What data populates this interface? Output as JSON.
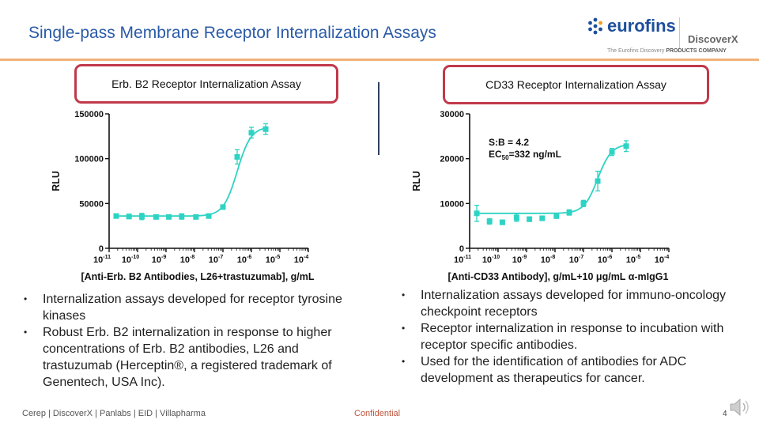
{
  "slide": {
    "title": "Single-pass Membrane Receptor Internalization Assays",
    "page_number": "4"
  },
  "logo": {
    "brand": "eurofins",
    "division": "DiscoverX",
    "tagline_prefix": "The Eurofins Discovery",
    "tagline_bold": "PRODUCTS COMPANY"
  },
  "colors": {
    "title": "#2a5aa8",
    "data_teal": "#2ed3c4",
    "box_border": "#c0394a",
    "rule_orange": "#f0b37a",
    "footer_confidential": "#c0543c"
  },
  "left": {
    "box_label": "Erb. B2 Receptor Internalization Assay",
    "bullets": [
      "Internalization assays developed for receptor tyrosine kinases",
      "Robust Erb. B2 internalization in response to higher concentrations of Erb. B2 antibodies, L26 and trastuzumab (Herceptin®, a registered trademark of Genentech, USA Inc)."
    ]
  },
  "right": {
    "box_label": "CD33 Receptor Internalization Assay",
    "bullets": [
      "Internalization assays developed for immuno-oncology checkpoint receptors",
      "Receptor internalization in response to incubation with receptor specific antibodies.",
      "Used for the identification of antibodies for ADC development as therapeutics for cancer."
    ]
  },
  "footer": {
    "left": "Cerep | DiscoverX | Panlabs | EID | Villapharma",
    "center": "Confidential"
  },
  "chart_data": [
    {
      "type": "scatter",
      "title": "Erb. B2 Receptor Internalization Assay",
      "xlabel": "[Anti-Erb. B2 Antibodies, L26+trastuzumab], g/mL",
      "ylabel": "RLU",
      "xscale": "log",
      "xlim": [
        -11,
        -4
      ],
      "ylim": [
        0,
        150000
      ],
      "x_ticks": [
        -11,
        -10,
        -9,
        -8,
        -7,
        -6,
        -5,
        -4
      ],
      "x_tick_labels": [
        "10",
        "10",
        "10",
        "10",
        "10",
        "10",
        "10",
        "10"
      ],
      "x_tick_exponents": [
        "-11",
        "-10",
        "-9",
        "-8",
        "-7",
        "-6",
        "-5",
        "-4"
      ],
      "y_ticks": [
        0,
        50000,
        100000,
        150000
      ],
      "y_tick_labels": [
        "0",
        "50000",
        "100000",
        "150000"
      ],
      "fit_curve": true,
      "series": [
        {
          "points": [
            {
              "x": -10.75,
              "y": 36000,
              "err": 2000
            },
            {
              "x": -10.3,
              "y": 35500,
              "err": 2500
            },
            {
              "x": -9.85,
              "y": 35500,
              "err": 3500
            },
            {
              "x": -9.35,
              "y": 35000,
              "err": 2000
            },
            {
              "x": -8.9,
              "y": 35000,
              "err": 1500
            },
            {
              "x": -8.45,
              "y": 35500,
              "err": 3000
            },
            {
              "x": -7.95,
              "y": 35000,
              "err": 2000
            },
            {
              "x": -7.5,
              "y": 36000,
              "err": 2000
            },
            {
              "x": -7.0,
              "y": 46000,
              "err": 2000
            },
            {
              "x": -6.5,
              "y": 102000,
              "err": 8000
            },
            {
              "x": -6.0,
              "y": 129000,
              "err": 6000
            },
            {
              "x": -5.5,
              "y": 133000,
              "err": 6000
            }
          ]
        }
      ]
    },
    {
      "type": "scatter",
      "title": "CD33 Receptor Internalization Assay",
      "xlabel": "[Anti-CD33 Antibody], g/mL+10 μg/mL α-mIgG1",
      "ylabel": "RLU",
      "xscale": "log",
      "xlim": [
        -11,
        -4
      ],
      "ylim": [
        0,
        30000
      ],
      "x_ticks": [
        -11,
        -10,
        -9,
        -8,
        -7,
        -6,
        -5,
        -4
      ],
      "x_tick_labels": [
        "10",
        "10",
        "10",
        "10",
        "10",
        "10",
        "10",
        "10"
      ],
      "x_tick_exponents": [
        "-11",
        "-10",
        "-9",
        "-8",
        "-7",
        "-6",
        "-5",
        "-4"
      ],
      "y_ticks": [
        0,
        10000,
        20000,
        30000
      ],
      "y_tick_labels": [
        "0",
        "10000",
        "20000",
        "30000"
      ],
      "annotation_line1": "S:B = 4.2",
      "annotation_ec_prefix": "EC",
      "annotation_ec_sub": "50",
      "annotation_ec_value": "=332 ng/mL",
      "fit_curve": true,
      "series": [
        {
          "points": [
            {
              "x": -10.75,
              "y": 7800,
              "err": 1800
            },
            {
              "x": -10.3,
              "y": 6000,
              "err": 600
            },
            {
              "x": -9.85,
              "y": 5800,
              "err": 500
            },
            {
              "x": -9.35,
              "y": 6800,
              "err": 800
            },
            {
              "x": -8.9,
              "y": 6500,
              "err": 500
            },
            {
              "x": -8.45,
              "y": 6700,
              "err": 500
            },
            {
              "x": -7.95,
              "y": 7200,
              "err": 500
            },
            {
              "x": -7.5,
              "y": 8000,
              "err": 600
            },
            {
              "x": -7.0,
              "y": 10000,
              "err": 700
            },
            {
              "x": -6.5,
              "y": 15000,
              "err": 2200
            },
            {
              "x": -6.0,
              "y": 21500,
              "err": 800
            },
            {
              "x": -5.5,
              "y": 22800,
              "err": 1200
            }
          ]
        }
      ]
    }
  ]
}
